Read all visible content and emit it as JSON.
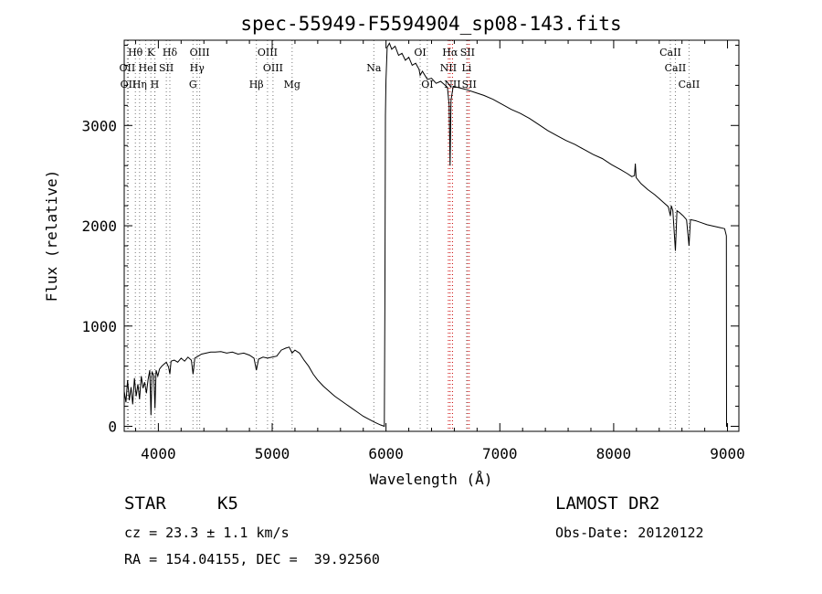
{
  "chart_data": {
    "type": "line",
    "title": "spec-55949-F5594904_sp08-143.fits",
    "xlabel": "Wavelength (Å)",
    "ylabel": "Flux (relative)",
    "xlim": [
      3700,
      9100
    ],
    "ylim": [
      -50,
      3850
    ],
    "x_ticks": [
      4000,
      5000,
      6000,
      7000,
      8000,
      9000
    ],
    "y_ticks": [
      0,
      1000,
      2000,
      3000
    ],
    "grid": false,
    "series": [
      {
        "line_color": "#000000",
        "points": [
          [
            3700,
            350
          ],
          [
            3715,
            240
          ],
          [
            3730,
            460
          ],
          [
            3745,
            260
          ],
          [
            3760,
            390
          ],
          [
            3775,
            220
          ],
          [
            3790,
            480
          ],
          [
            3805,
            300
          ],
          [
            3820,
            420
          ],
          [
            3835,
            270
          ],
          [
            3850,
            500
          ],
          [
            3865,
            380
          ],
          [
            3880,
            440
          ],
          [
            3895,
            330
          ],
          [
            3910,
            470
          ],
          [
            3925,
            560
          ],
          [
            3935,
            110
          ],
          [
            3945,
            540
          ],
          [
            3960,
            510
          ],
          [
            3970,
            180
          ],
          [
            3980,
            560
          ],
          [
            3995,
            500
          ],
          [
            4010,
            570
          ],
          [
            4030,
            600
          ],
          [
            4050,
            620
          ],
          [
            4070,
            640
          ],
          [
            4090,
            590
          ],
          [
            4101,
            520
          ],
          [
            4112,
            650
          ],
          [
            4140,
            660
          ],
          [
            4170,
            640
          ],
          [
            4200,
            680
          ],
          [
            4230,
            650
          ],
          [
            4260,
            690
          ],
          [
            4290,
            660
          ],
          [
            4305,
            520
          ],
          [
            4320,
            680
          ],
          [
            4350,
            700
          ],
          [
            4380,
            720
          ],
          [
            4420,
            730
          ],
          [
            4460,
            740
          ],
          [
            4500,
            740
          ],
          [
            4550,
            745
          ],
          [
            4600,
            730
          ],
          [
            4650,
            740
          ],
          [
            4700,
            720
          ],
          [
            4750,
            730
          ],
          [
            4800,
            710
          ],
          [
            4840,
            680
          ],
          [
            4861,
            560
          ],
          [
            4880,
            670
          ],
          [
            4920,
            690
          ],
          [
            4960,
            680
          ],
          [
            5000,
            690
          ],
          [
            5040,
            700
          ],
          [
            5080,
            760
          ],
          [
            5120,
            780
          ],
          [
            5150,
            790
          ],
          [
            5175,
            730
          ],
          [
            5200,
            760
          ],
          [
            5240,
            730
          ],
          [
            5280,
            660
          ],
          [
            5320,
            600
          ],
          [
            5360,
            520
          ],
          [
            5400,
            460
          ],
          [
            5450,
            400
          ],
          [
            5500,
            350
          ],
          [
            5550,
            300
          ],
          [
            5600,
            260
          ],
          [
            5650,
            220
          ],
          [
            5700,
            180
          ],
          [
            5750,
            140
          ],
          [
            5800,
            100
          ],
          [
            5850,
            70
          ],
          [
            5900,
            40
          ],
          [
            5950,
            15
          ],
          [
            5985,
            0
          ],
          [
            5990,
            1200
          ],
          [
            5995,
            3100
          ],
          [
            6000,
            3450
          ],
          [
            6010,
            3780
          ],
          [
            6030,
            3820
          ],
          [
            6050,
            3760
          ],
          [
            6080,
            3790
          ],
          [
            6110,
            3700
          ],
          [
            6140,
            3720
          ],
          [
            6170,
            3650
          ],
          [
            6200,
            3680
          ],
          [
            6230,
            3600
          ],
          [
            6260,
            3620
          ],
          [
            6290,
            3560
          ],
          [
            6300,
            3500
          ],
          [
            6320,
            3540
          ],
          [
            6363,
            3460
          ],
          [
            6400,
            3470
          ],
          [
            6440,
            3420
          ],
          [
            6480,
            3440
          ],
          [
            6520,
            3400
          ],
          [
            6540,
            3380
          ],
          [
            6555,
            3200
          ],
          [
            6563,
            2600
          ],
          [
            6571,
            3250
          ],
          [
            6590,
            3390
          ],
          [
            6630,
            3380
          ],
          [
            6700,
            3360
          ],
          [
            6780,
            3330
          ],
          [
            6860,
            3300
          ],
          [
            6940,
            3260
          ],
          [
            7020,
            3210
          ],
          [
            7100,
            3160
          ],
          [
            7180,
            3120
          ],
          [
            7260,
            3070
          ],
          [
            7340,
            3010
          ],
          [
            7420,
            2950
          ],
          [
            7500,
            2900
          ],
          [
            7580,
            2850
          ],
          [
            7660,
            2810
          ],
          [
            7740,
            2760
          ],
          [
            7820,
            2710
          ],
          [
            7900,
            2670
          ],
          [
            7980,
            2610
          ],
          [
            8060,
            2560
          ],
          [
            8120,
            2520
          ],
          [
            8160,
            2490
          ],
          [
            8183,
            2500
          ],
          [
            8190,
            2620
          ],
          [
            8197,
            2480
          ],
          [
            8240,
            2420
          ],
          [
            8300,
            2360
          ],
          [
            8360,
            2310
          ],
          [
            8400,
            2270
          ],
          [
            8440,
            2230
          ],
          [
            8480,
            2190
          ],
          [
            8498,
            2100
          ],
          [
            8506,
            2200
          ],
          [
            8520,
            2150
          ],
          [
            8542,
            1750
          ],
          [
            8556,
            2150
          ],
          [
            8580,
            2130
          ],
          [
            8610,
            2100
          ],
          [
            8640,
            2060
          ],
          [
            8662,
            1800
          ],
          [
            8675,
            2060
          ],
          [
            8720,
            2050
          ],
          [
            8770,
            2030
          ],
          [
            8820,
            2010
          ],
          [
            8860,
            2000
          ],
          [
            8900,
            1990
          ],
          [
            8940,
            1980
          ],
          [
            8975,
            1970
          ],
          [
            8990,
            1900
          ],
          [
            8992,
            0
          ],
          [
            9000,
            0
          ]
        ]
      }
    ],
    "lines_label_color": "#000000",
    "lines_marker_color": "#777777",
    "lines_emission_color": "#cc0000",
    "spectral_lines": [
      {
        "label": "Hθ",
        "x": 3798,
        "row": 1
      },
      {
        "label": "K",
        "x": 3934,
        "row": 1
      },
      {
        "label": "Hδ",
        "x": 4101,
        "row": 1
      },
      {
        "label": "OIII",
        "x": 4363,
        "row": 1
      },
      {
        "label": "OIII",
        "x": 4959,
        "row": 1
      },
      {
        "label": "OI",
        "x": 6300,
        "row": 1
      },
      {
        "label": "Hα",
        "x": 6563,
        "row": 1,
        "emission": true
      },
      {
        "label": "SII",
        "x": 6716,
        "row": 1,
        "emission": true
      },
      {
        "label": "CaII",
        "x": 8498,
        "row": 1
      },
      {
        "label": "OII",
        "x": 3727,
        "row": 2
      },
      {
        "label": "He",
        "x": 3889,
        "row": 2
      },
      {
        "label": "I",
        "x": 3970,
        "row": 2
      },
      {
        "label": "SII",
        "x": 4070,
        "row": 2
      },
      {
        "label": "Hγ",
        "x": 4340,
        "row": 2
      },
      {
        "label": "OIII",
        "x": 5007,
        "row": 2
      },
      {
        "label": "Na",
        "x": 5893,
        "row": 2
      },
      {
        "label": "NII",
        "x": 6548,
        "row": 2,
        "emission": true
      },
      {
        "label": "Li",
        "x": 6708,
        "row": 2
      },
      {
        "label": "CaII",
        "x": 8542,
        "row": 2
      },
      {
        "label": "OII",
        "x": 3736,
        "row": 3
      },
      {
        "label": "Hη",
        "x": 3835,
        "row": 3
      },
      {
        "label": "H",
        "x": 3968,
        "row": 3
      },
      {
        "label": "G",
        "x": 4304,
        "row": 3
      },
      {
        "label": "Hβ",
        "x": 4861,
        "row": 3
      },
      {
        "label": "Mg",
        "x": 5175,
        "row": 3
      },
      {
        "label": "OI",
        "x": 6363,
        "row": 3
      },
      {
        "label": "NII",
        "x": 6584,
        "row": 3,
        "emission": true
      },
      {
        "label": "SII",
        "x": 6731,
        "row": 3,
        "emission": true
      },
      {
        "label": "CaII",
        "x": 8662,
        "row": 3
      }
    ]
  },
  "footer": {
    "object_class": "STAR",
    "subclass": "K5",
    "survey": "LAMOST DR2",
    "redshift": "cz = 23.3 ± 1.1 km/s",
    "obs_date": "Obs-Date: 20120122",
    "coords": "RA = 154.04155, DEC =  39.92560"
  }
}
